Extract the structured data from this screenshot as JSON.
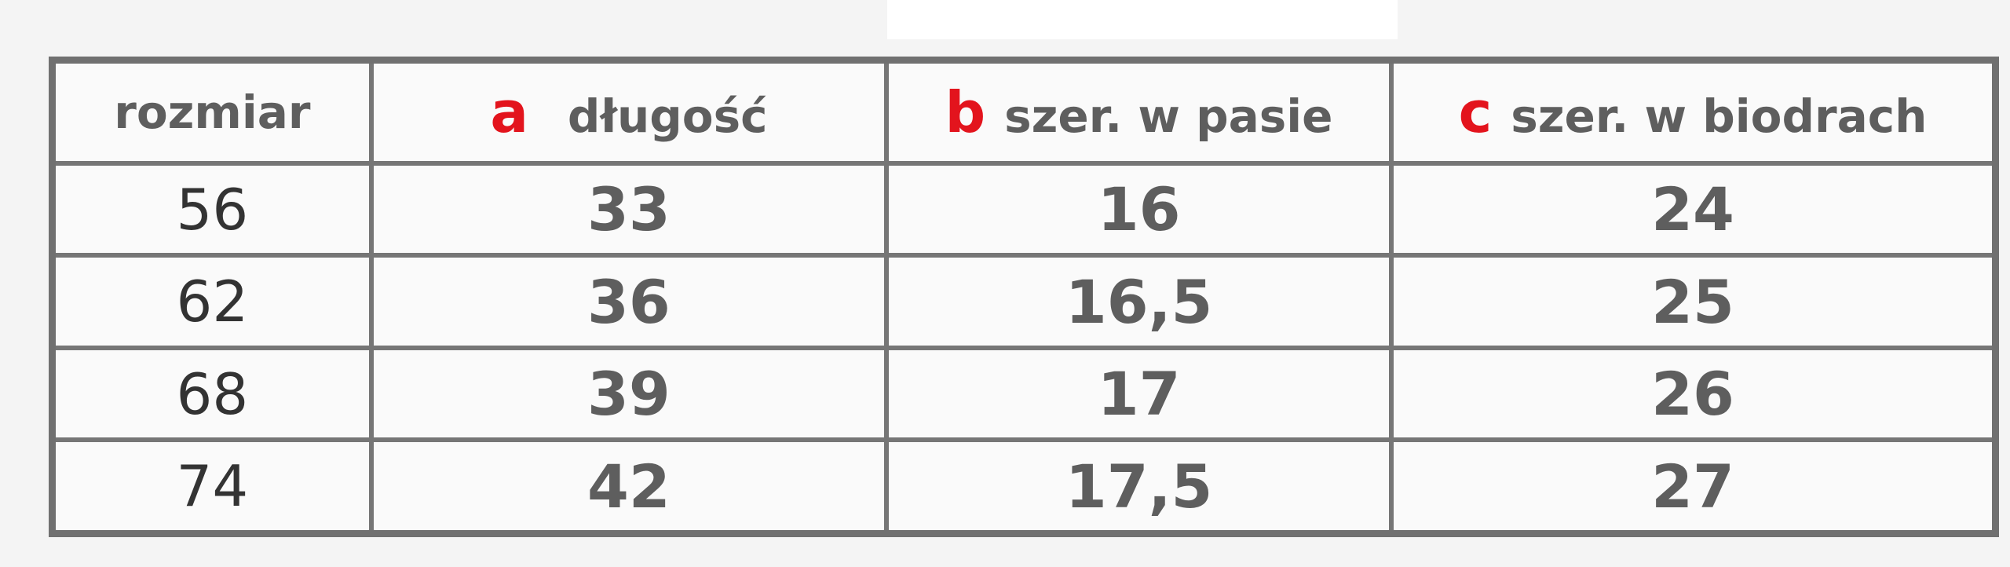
{
  "table": {
    "headers": [
      {
        "letter": "",
        "label": "rozmiar"
      },
      {
        "letter": "a",
        "label": "długość"
      },
      {
        "letter": "b",
        "label": "szer. w pasie"
      },
      {
        "letter": "c",
        "label": "szer. w biodrach"
      }
    ],
    "rows": [
      [
        "56",
        "33",
        "16",
        "24"
      ],
      [
        "62",
        "36",
        "16,5",
        "25"
      ],
      [
        "68",
        "39",
        "17",
        "26"
      ],
      [
        "74",
        "42",
        "17,5",
        "27"
      ]
    ]
  },
  "colors": {
    "letter_accent": "#e3141d",
    "text": "#5e5e5e",
    "border": "#707070"
  }
}
